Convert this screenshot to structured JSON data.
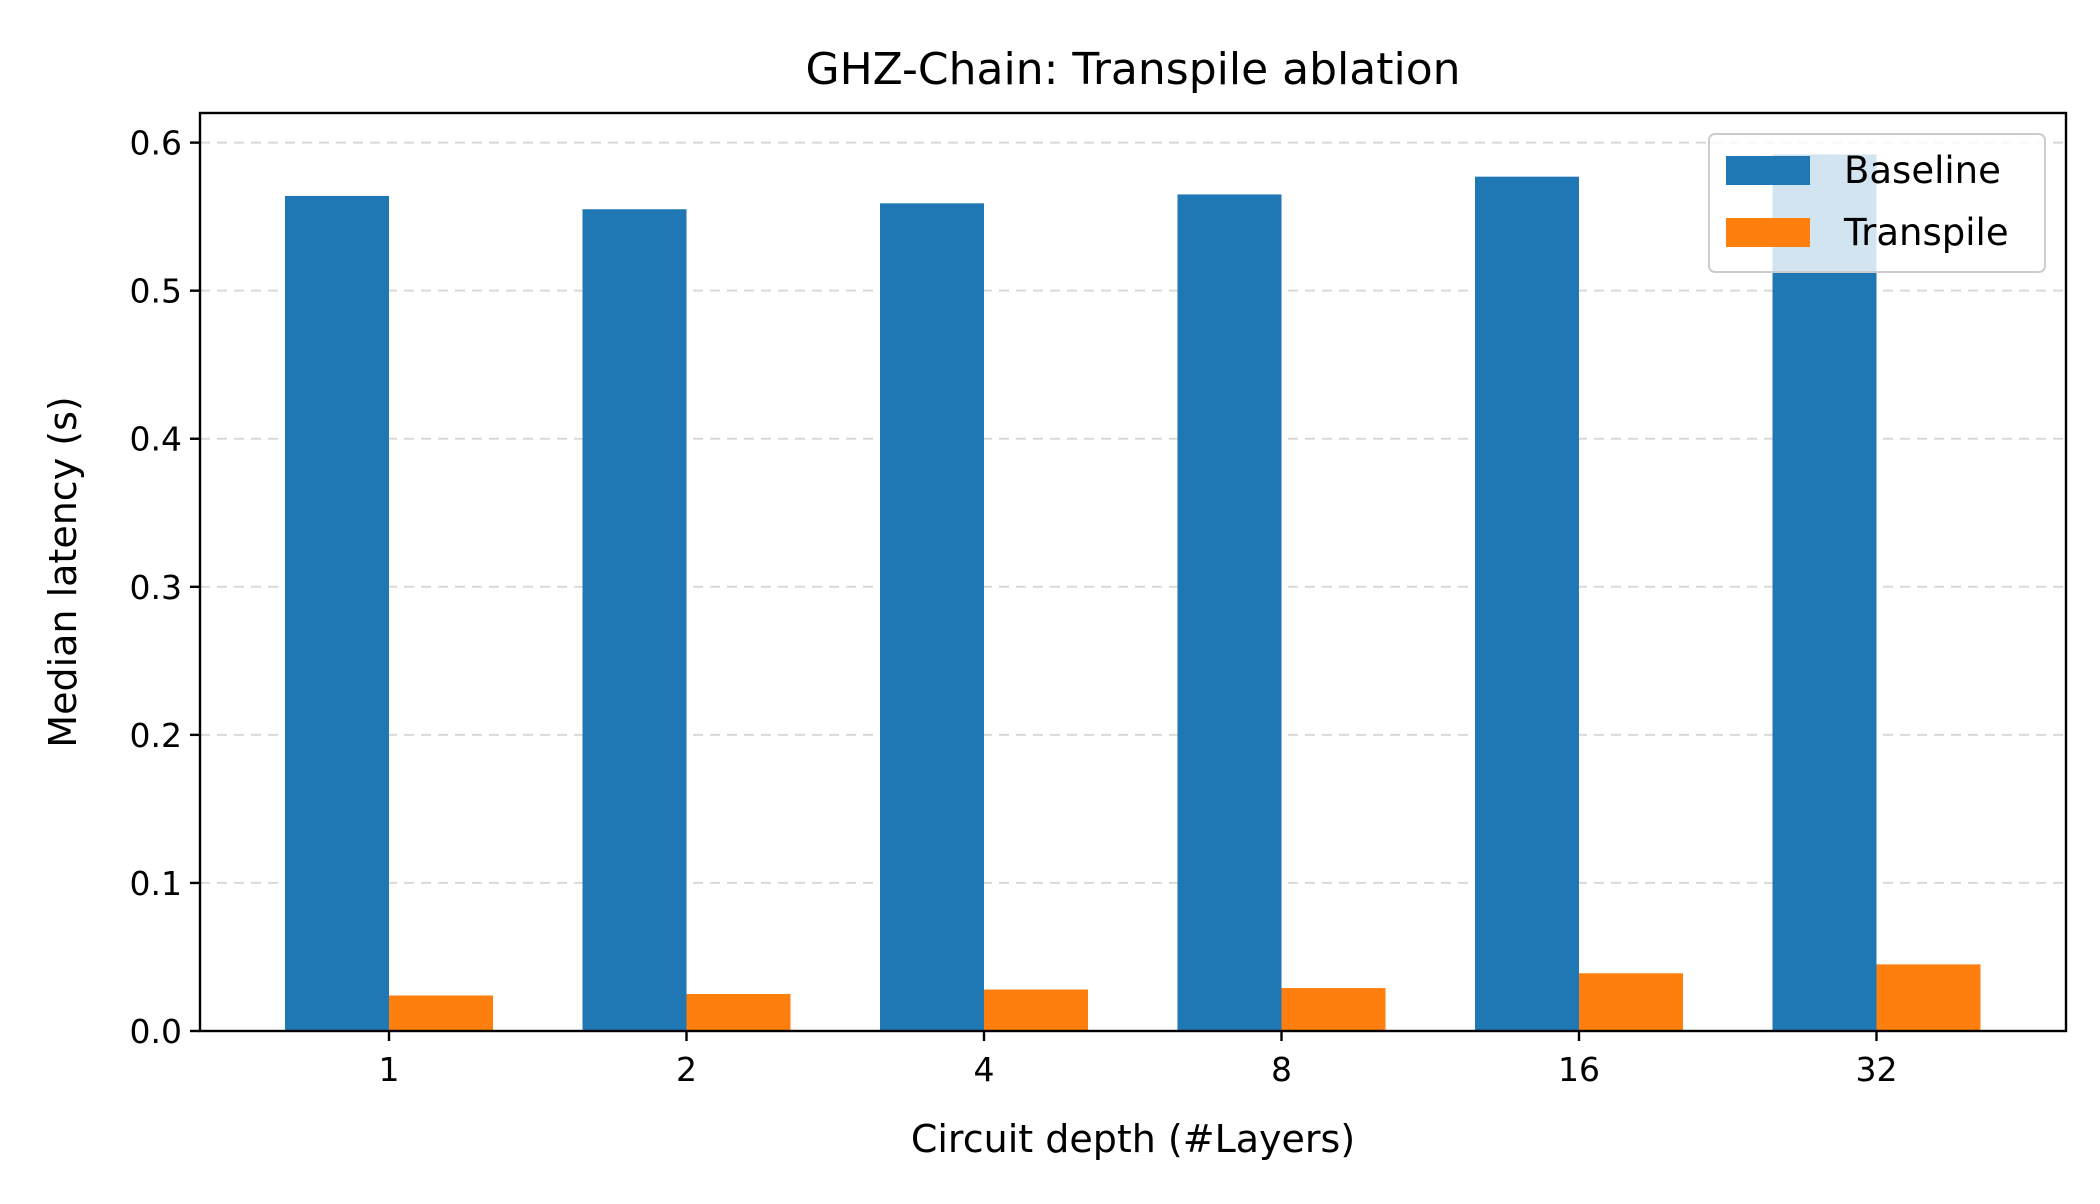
{
  "chart_data": {
    "type": "bar",
    "title": "GHZ-Chain: Transpile ablation",
    "xlabel": "Circuit depth (#Layers)",
    "ylabel": "Median latency (s)",
    "categories": [
      "1",
      "2",
      "4",
      "8",
      "16",
      "32"
    ],
    "series": [
      {
        "name": "Baseline",
        "color": "#1f77b4",
        "values": [
          0.564,
          0.555,
          0.559,
          0.565,
          0.577,
          0.592
        ]
      },
      {
        "name": "Transpile",
        "color": "#ff7f0e",
        "values": [
          0.024,
          0.025,
          0.028,
          0.029,
          0.039,
          0.045
        ]
      }
    ],
    "ylim": [
      0,
      0.62
    ],
    "yticks": [
      "0.0",
      "0.1",
      "0.2",
      "0.3",
      "0.4",
      "0.5",
      "0.6"
    ],
    "grid": "y-dashed",
    "legend": "top-right"
  }
}
